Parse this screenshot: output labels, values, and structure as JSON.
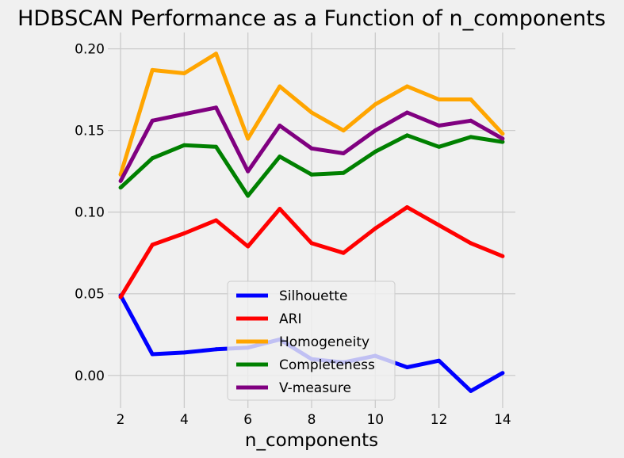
{
  "chart_data": {
    "type": "line",
    "title": "HDBSCAN Performance as a Function of n_components",
    "xlabel": "n_components",
    "ylabel": "",
    "x": [
      2,
      3,
      4,
      5,
      6,
      7,
      8,
      9,
      10,
      11,
      12,
      13,
      14
    ],
    "xlim": [
      1.6,
      14.4
    ],
    "ylim": [
      -0.02,
      0.21
    ],
    "xticks": [
      2,
      4,
      6,
      8,
      10,
      12,
      14
    ],
    "xtick_labels": [
      "2",
      "4",
      "6",
      "8",
      "10",
      "12",
      "14"
    ],
    "yticks": [
      0.0,
      0.05,
      0.1,
      0.15,
      0.2
    ],
    "ytick_labels": [
      "0.00",
      "0.05",
      "0.10",
      "0.15",
      "0.20"
    ],
    "grid": true,
    "legend_position": "lower-center",
    "series": [
      {
        "name": "Silhouette",
        "color": "#0000ff",
        "values": [
          0.049,
          0.013,
          0.014,
          0.016,
          0.017,
          0.022,
          0.01,
          0.008,
          0.012,
          0.005,
          0.009,
          -0.0095,
          0.0015
        ]
      },
      {
        "name": "ARI",
        "color": "#ff0000",
        "values": [
          0.048,
          0.08,
          0.087,
          0.095,
          0.079,
          0.102,
          0.081,
          0.075,
          0.09,
          0.103,
          0.092,
          0.081,
          0.073
        ]
      },
      {
        "name": "Homogeneity",
        "color": "#ffa500",
        "values": [
          0.123,
          0.187,
          0.185,
          0.197,
          0.145,
          0.177,
          0.161,
          0.15,
          0.166,
          0.177,
          0.169,
          0.169,
          0.148
        ]
      },
      {
        "name": "Completeness",
        "color": "#008000",
        "values": [
          0.115,
          0.133,
          0.141,
          0.14,
          0.11,
          0.134,
          0.123,
          0.124,
          0.137,
          0.147,
          0.14,
          0.146,
          0.143
        ]
      },
      {
        "name": "V-measure",
        "color": "#800080",
        "values": [
          0.119,
          0.156,
          0.16,
          0.164,
          0.125,
          0.153,
          0.139,
          0.136,
          0.15,
          0.161,
          0.153,
          0.156,
          0.145
        ]
      }
    ]
  }
}
